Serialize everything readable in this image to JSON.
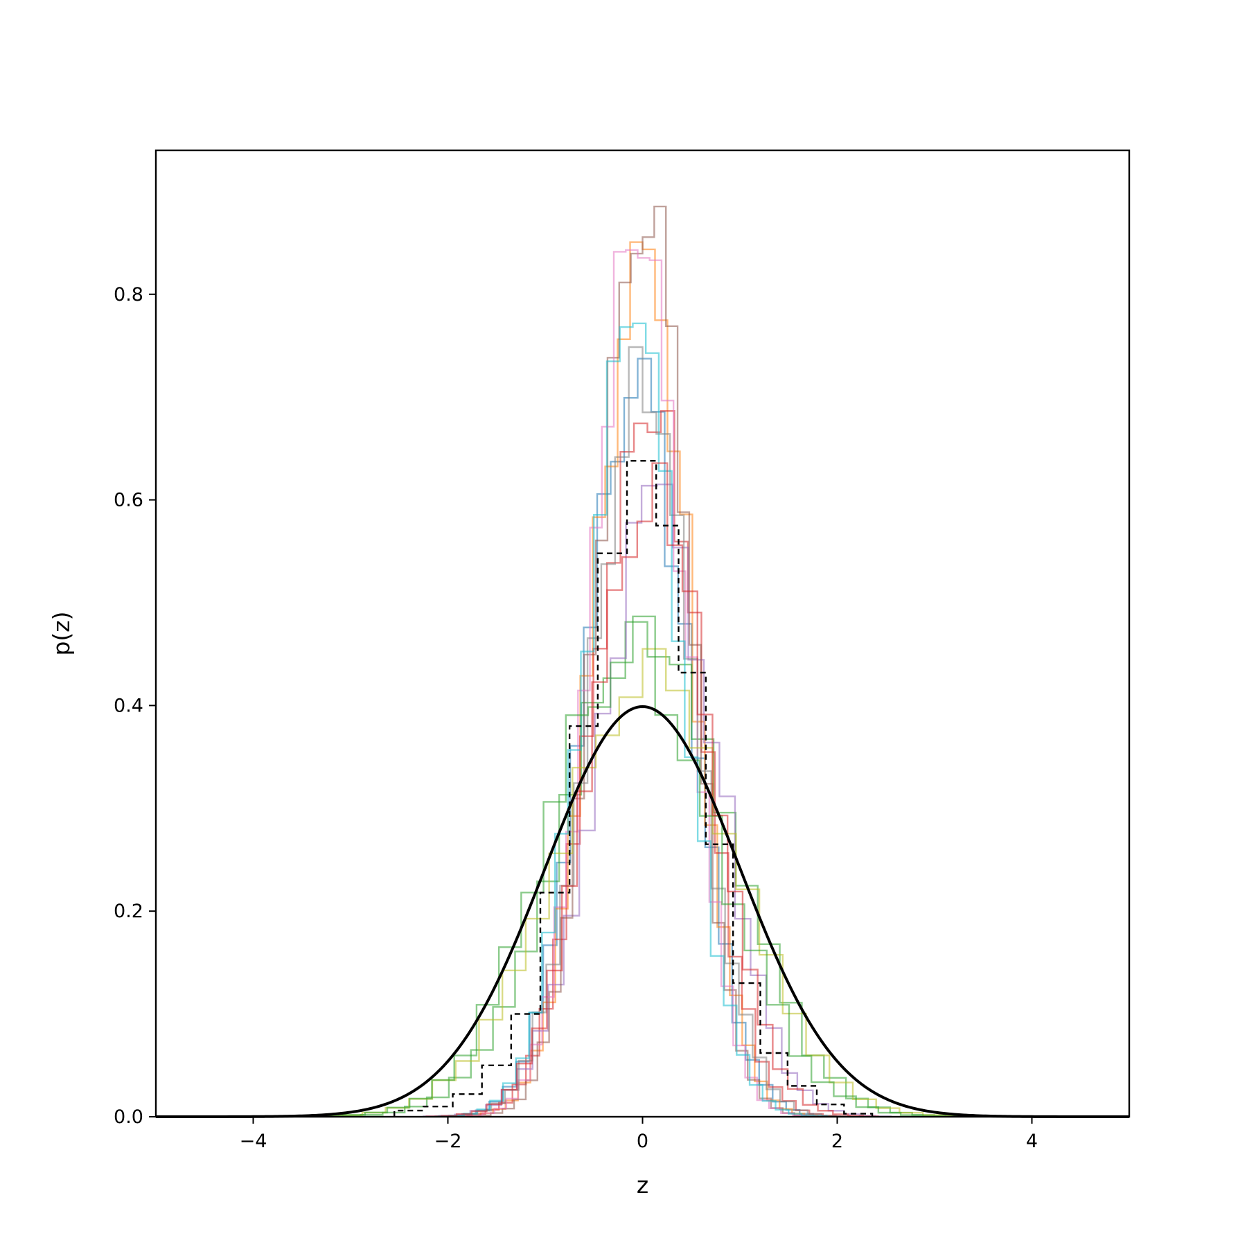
{
  "chart_data": {
    "type": "line",
    "title": "",
    "xlabel": "z",
    "ylabel": "p(z)",
    "xlim": [
      -5,
      5
    ],
    "ylim": [
      0,
      0.94
    ],
    "grid": false,
    "legend": "none",
    "xticks": [
      {
        "value": -4,
        "label": "−4"
      },
      {
        "value": -2,
        "label": "−2"
      },
      {
        "value": 0,
        "label": "0"
      },
      {
        "value": 2,
        "label": "2"
      },
      {
        "value": 4,
        "label": "4"
      }
    ],
    "yticks": [
      {
        "value": 0.0,
        "label": "0.0"
      },
      {
        "value": 0.2,
        "label": "0.2"
      },
      {
        "value": 0.4,
        "label": "0.4"
      },
      {
        "value": 0.6,
        "label": "0.6"
      },
      {
        "value": 0.8,
        "label": "0.8"
      }
    ],
    "reference_curve": {
      "kind": "standard normal pdf",
      "mean": 0,
      "std": 1,
      "color": "#000000"
    },
    "pooled_histogram": {
      "style": "dashed step",
      "color": "#000000",
      "bin_edges": [
        -2.55,
        -2.25,
        -1.95,
        -1.65,
        -1.35,
        -1.05,
        -0.75,
        -0.46,
        -0.16,
        0.14,
        0.37,
        0.65,
        0.93,
        1.21,
        1.49,
        1.79,
        2.07,
        2.36
      ],
      "values": [
        0.006,
        0.01,
        0.022,
        0.05,
        0.1,
        0.218,
        0.38,
        0.548,
        0.638,
        0.575,
        0.432,
        0.265,
        0.13,
        0.062,
        0.03,
        0.012,
        0.003
      ]
    },
    "series": [
      {
        "color": "#1f77b4",
        "center": -0.05,
        "peak": 0.72,
        "spread": 0.52
      },
      {
        "color": "#ff7f0e",
        "center": 0.0,
        "peak": 0.85,
        "spread": 0.48
      },
      {
        "color": "#2ca02c",
        "center": 0.05,
        "peak": 0.47,
        "spread": 0.85
      },
      {
        "color": "#d62728",
        "center": 0.05,
        "peak": 0.73,
        "spread": 0.52
      },
      {
        "color": "#9467bd",
        "center": 0.15,
        "peak": 0.6,
        "spread": 0.6
      },
      {
        "color": "#8c564b",
        "center": 0.0,
        "peak": 0.89,
        "spread": 0.45
      },
      {
        "color": "#e377c2",
        "center": -0.05,
        "peak": 0.88,
        "spread": 0.46
      },
      {
        "color": "#7f7f7f",
        "center": 0.0,
        "peak": 0.7,
        "spread": 0.53
      },
      {
        "color": "#bcbd22",
        "center": 0.0,
        "peak": 0.43,
        "spread": 0.9
      },
      {
        "color": "#17becf",
        "center": -0.1,
        "peak": 0.75,
        "spread": 0.5
      },
      {
        "color": "#2ca02c",
        "center": -0.1,
        "peak": 0.46,
        "spread": 0.86
      },
      {
        "color": "#d62728",
        "center": 0.1,
        "peak": 0.63,
        "spread": 0.58
      }
    ]
  }
}
